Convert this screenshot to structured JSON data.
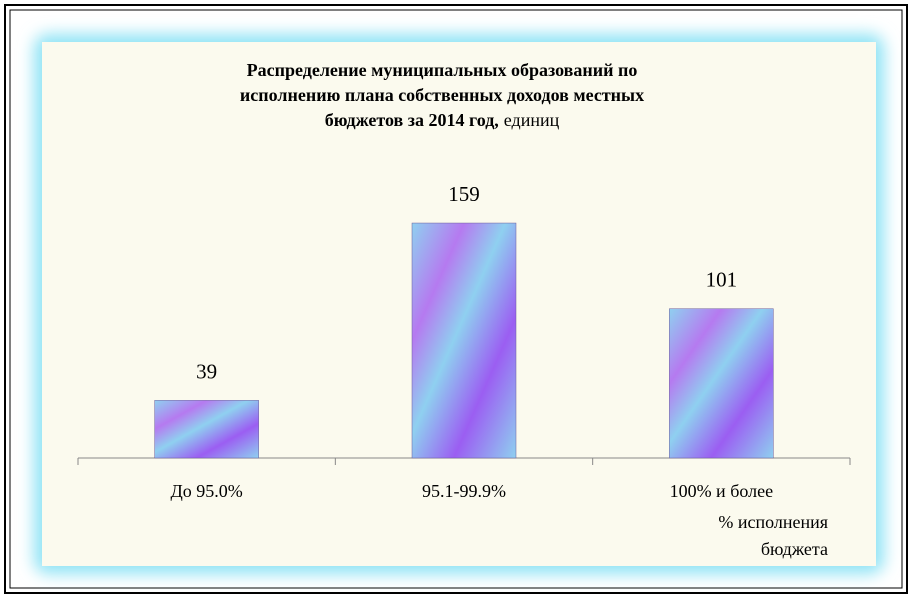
{
  "chart_data": {
    "type": "bar",
    "title_lines": [
      "Распределение муниципальных образований по",
      "исполнению плана собственных доходов местных",
      "бюджетов за 2014 год,"
    ],
    "title_unit": "единиц",
    "categories": [
      "До 95.0%",
      "95.1-99.9%",
      "100% и более"
    ],
    "values": [
      39,
      159,
      101
    ],
    "xlabel_lines": [
      "% исполнения",
      "бюджета"
    ],
    "ylim": [
      0,
      180
    ],
    "colors": [
      "#8fd0f0",
      "#b57af0",
      "#9b5ef2"
    ]
  }
}
